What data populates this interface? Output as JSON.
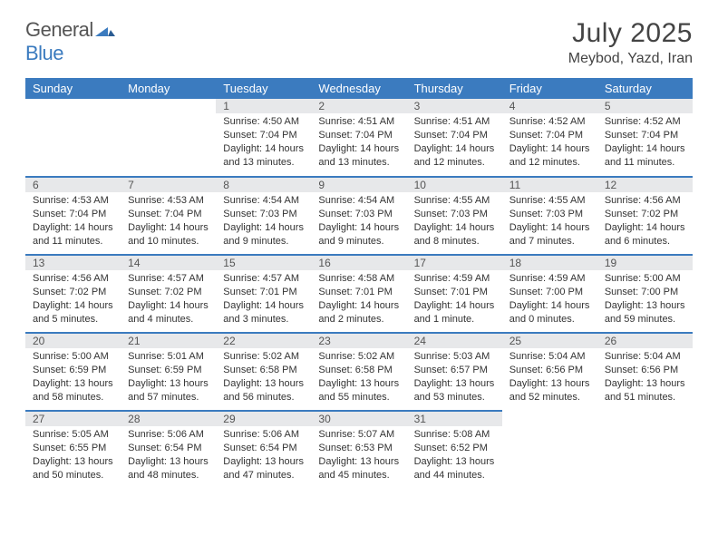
{
  "logo": {
    "text_gray": "General",
    "text_blue": "Blue"
  },
  "title": "July 2025",
  "location": "Meybod, Yazd, Iran",
  "colors": {
    "header_bg": "#3b7bbf",
    "header_text": "#ffffff",
    "daynum_bg": "#e7e8ea",
    "row_border": "#3b7bbf",
    "body_text": "#333333",
    "title_text": "#444444"
  },
  "day_headers": [
    "Sunday",
    "Monday",
    "Tuesday",
    "Wednesday",
    "Thursday",
    "Friday",
    "Saturday"
  ],
  "weeks": [
    [
      null,
      null,
      {
        "n": "1",
        "sr": "4:50 AM",
        "ss": "7:04 PM",
        "dl": "14 hours and 13 minutes."
      },
      {
        "n": "2",
        "sr": "4:51 AM",
        "ss": "7:04 PM",
        "dl": "14 hours and 13 minutes."
      },
      {
        "n": "3",
        "sr": "4:51 AM",
        "ss": "7:04 PM",
        "dl": "14 hours and 12 minutes."
      },
      {
        "n": "4",
        "sr": "4:52 AM",
        "ss": "7:04 PM",
        "dl": "14 hours and 12 minutes."
      },
      {
        "n": "5",
        "sr": "4:52 AM",
        "ss": "7:04 PM",
        "dl": "14 hours and 11 minutes."
      }
    ],
    [
      {
        "n": "6",
        "sr": "4:53 AM",
        "ss": "7:04 PM",
        "dl": "14 hours and 11 minutes."
      },
      {
        "n": "7",
        "sr": "4:53 AM",
        "ss": "7:04 PM",
        "dl": "14 hours and 10 minutes."
      },
      {
        "n": "8",
        "sr": "4:54 AM",
        "ss": "7:03 PM",
        "dl": "14 hours and 9 minutes."
      },
      {
        "n": "9",
        "sr": "4:54 AM",
        "ss": "7:03 PM",
        "dl": "14 hours and 9 minutes."
      },
      {
        "n": "10",
        "sr": "4:55 AM",
        "ss": "7:03 PM",
        "dl": "14 hours and 8 minutes."
      },
      {
        "n": "11",
        "sr": "4:55 AM",
        "ss": "7:03 PM",
        "dl": "14 hours and 7 minutes."
      },
      {
        "n": "12",
        "sr": "4:56 AM",
        "ss": "7:02 PM",
        "dl": "14 hours and 6 minutes."
      }
    ],
    [
      {
        "n": "13",
        "sr": "4:56 AM",
        "ss": "7:02 PM",
        "dl": "14 hours and 5 minutes."
      },
      {
        "n": "14",
        "sr": "4:57 AM",
        "ss": "7:02 PM",
        "dl": "14 hours and 4 minutes."
      },
      {
        "n": "15",
        "sr": "4:57 AM",
        "ss": "7:01 PM",
        "dl": "14 hours and 3 minutes."
      },
      {
        "n": "16",
        "sr": "4:58 AM",
        "ss": "7:01 PM",
        "dl": "14 hours and 2 minutes."
      },
      {
        "n": "17",
        "sr": "4:59 AM",
        "ss": "7:01 PM",
        "dl": "14 hours and 1 minute."
      },
      {
        "n": "18",
        "sr": "4:59 AM",
        "ss": "7:00 PM",
        "dl": "14 hours and 0 minutes."
      },
      {
        "n": "19",
        "sr": "5:00 AM",
        "ss": "7:00 PM",
        "dl": "13 hours and 59 minutes."
      }
    ],
    [
      {
        "n": "20",
        "sr": "5:00 AM",
        "ss": "6:59 PM",
        "dl": "13 hours and 58 minutes."
      },
      {
        "n": "21",
        "sr": "5:01 AM",
        "ss": "6:59 PM",
        "dl": "13 hours and 57 minutes."
      },
      {
        "n": "22",
        "sr": "5:02 AM",
        "ss": "6:58 PM",
        "dl": "13 hours and 56 minutes."
      },
      {
        "n": "23",
        "sr": "5:02 AM",
        "ss": "6:58 PM",
        "dl": "13 hours and 55 minutes."
      },
      {
        "n": "24",
        "sr": "5:03 AM",
        "ss": "6:57 PM",
        "dl": "13 hours and 53 minutes."
      },
      {
        "n": "25",
        "sr": "5:04 AM",
        "ss": "6:56 PM",
        "dl": "13 hours and 52 minutes."
      },
      {
        "n": "26",
        "sr": "5:04 AM",
        "ss": "6:56 PM",
        "dl": "13 hours and 51 minutes."
      }
    ],
    [
      {
        "n": "27",
        "sr": "5:05 AM",
        "ss": "6:55 PM",
        "dl": "13 hours and 50 minutes."
      },
      {
        "n": "28",
        "sr": "5:06 AM",
        "ss": "6:54 PM",
        "dl": "13 hours and 48 minutes."
      },
      {
        "n": "29",
        "sr": "5:06 AM",
        "ss": "6:54 PM",
        "dl": "13 hours and 47 minutes."
      },
      {
        "n": "30",
        "sr": "5:07 AM",
        "ss": "6:53 PM",
        "dl": "13 hours and 45 minutes."
      },
      {
        "n": "31",
        "sr": "5:08 AM",
        "ss": "6:52 PM",
        "dl": "13 hours and 44 minutes."
      },
      null,
      null
    ]
  ],
  "labels": {
    "sunrise": "Sunrise:",
    "sunset": "Sunset:",
    "daylight": "Daylight:"
  }
}
